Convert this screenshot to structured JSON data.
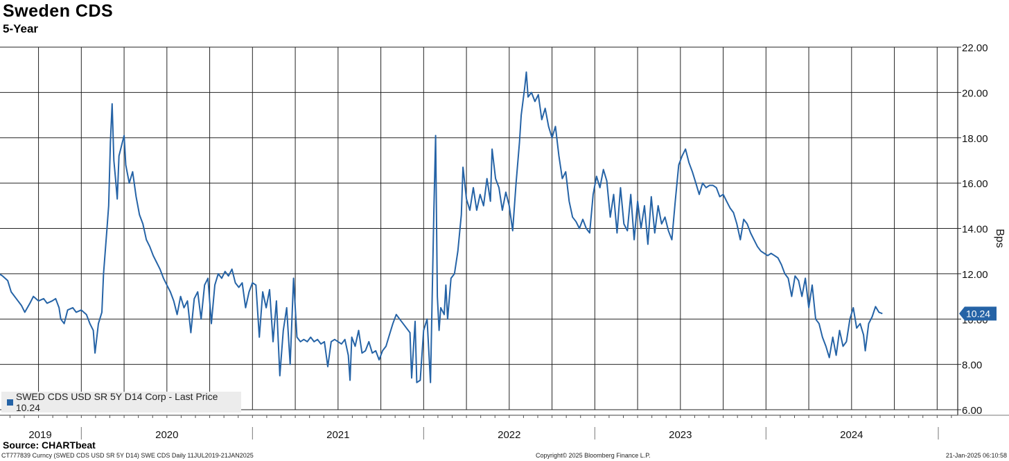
{
  "header": {
    "title": "Sweden CDS",
    "subtitle": "5-Year"
  },
  "legend": {
    "label": "SWED CDS USD SR 5Y D14 Corp - Last Price 10.24",
    "color": "#2563a6"
  },
  "last_price_label": "10.24",
  "source": "Source: CHARTbeat",
  "footer": {
    "left": "CT777839 Curncy (SWED CDS USD SR 5Y D14) SWE CDS  Daily 11JUL2019-21JAN2025",
    "middle": "Copyright© 2025 Bloomberg Finance L.P.",
    "right": "21-Jan-2025 06:10:58"
  },
  "chart_data": {
    "type": "line",
    "title": "Sweden CDS",
    "subtitle": "5-Year",
    "ylabel": "Bps",
    "ylim": [
      6,
      22
    ],
    "y_ticks": [
      "22.00",
      "20.00",
      "18.00",
      "16.00",
      "14.00",
      "12.00",
      "10.00",
      "8.00",
      "6.00"
    ],
    "x_ticks": [
      "2019",
      "2020",
      "2021",
      "2022",
      "2023",
      "2024"
    ],
    "grid": true,
    "legend_position": "bottom-left",
    "series": [
      {
        "name": "SWED CDS USD SR 5Y D14 Corp - Last Price",
        "color": "#2563a6",
        "last_value": 10.24,
        "points": [
          [
            2019.52,
            12.0
          ],
          [
            2019.54,
            11.9
          ],
          [
            2019.57,
            11.7
          ],
          [
            2019.59,
            11.2
          ],
          [
            2019.62,
            10.9
          ],
          [
            2019.65,
            10.6
          ],
          [
            2019.67,
            10.3
          ],
          [
            2019.7,
            10.7
          ],
          [
            2019.72,
            11.0
          ],
          [
            2019.75,
            10.8
          ],
          [
            2019.78,
            10.9
          ],
          [
            2019.8,
            10.7
          ],
          [
            2019.83,
            10.8
          ],
          [
            2019.85,
            10.9
          ],
          [
            2019.87,
            10.5
          ],
          [
            2019.88,
            10.0
          ],
          [
            2019.9,
            9.8
          ],
          [
            2019.92,
            10.4
          ],
          [
            2019.95,
            10.5
          ],
          [
            2019.97,
            10.3
          ],
          [
            2020.0,
            10.4
          ],
          [
            2020.03,
            10.2
          ],
          [
            2020.05,
            9.8
          ],
          [
            2020.07,
            9.5
          ],
          [
            2020.08,
            8.5
          ],
          [
            2020.1,
            9.8
          ],
          [
            2020.12,
            10.3
          ],
          [
            2020.13,
            12.0
          ],
          [
            2020.15,
            14.0
          ],
          [
            2020.16,
            15.0
          ],
          [
            2020.17,
            17.8
          ],
          [
            2020.18,
            19.5
          ],
          [
            2020.19,
            17.0
          ],
          [
            2020.2,
            16.2
          ],
          [
            2020.21,
            15.3
          ],
          [
            2020.22,
            17.2
          ],
          [
            2020.24,
            17.8
          ],
          [
            2020.25,
            18.1
          ],
          [
            2020.26,
            16.8
          ],
          [
            2020.28,
            16.0
          ],
          [
            2020.3,
            16.5
          ],
          [
            2020.32,
            15.4
          ],
          [
            2020.34,
            14.6
          ],
          [
            2020.36,
            14.2
          ],
          [
            2020.38,
            13.5
          ],
          [
            2020.4,
            13.2
          ],
          [
            2020.42,
            12.8
          ],
          [
            2020.44,
            12.5
          ],
          [
            2020.46,
            12.2
          ],
          [
            2020.48,
            11.8
          ],
          [
            2020.5,
            11.5
          ],
          [
            2020.52,
            11.2
          ],
          [
            2020.54,
            10.8
          ],
          [
            2020.56,
            10.2
          ],
          [
            2020.58,
            11.0
          ],
          [
            2020.6,
            10.5
          ],
          [
            2020.62,
            10.8
          ],
          [
            2020.64,
            9.4
          ],
          [
            2020.66,
            10.9
          ],
          [
            2020.68,
            11.2
          ],
          [
            2020.7,
            10.0
          ],
          [
            2020.72,
            11.5
          ],
          [
            2020.74,
            11.8
          ],
          [
            2020.76,
            9.8
          ],
          [
            2020.78,
            11.5
          ],
          [
            2020.8,
            12.0
          ],
          [
            2020.82,
            11.8
          ],
          [
            2020.84,
            12.1
          ],
          [
            2020.86,
            11.9
          ],
          [
            2020.88,
            12.2
          ],
          [
            2020.9,
            11.6
          ],
          [
            2020.92,
            11.4
          ],
          [
            2020.94,
            11.6
          ],
          [
            2020.96,
            10.5
          ],
          [
            2020.98,
            11.2
          ],
          [
            2021.0,
            11.6
          ],
          [
            2021.02,
            11.5
          ],
          [
            2021.04,
            9.2
          ],
          [
            2021.06,
            11.2
          ],
          [
            2021.08,
            10.5
          ],
          [
            2021.1,
            11.3
          ],
          [
            2021.12,
            9.0
          ],
          [
            2021.14,
            10.8
          ],
          [
            2021.16,
            7.5
          ],
          [
            2021.18,
            9.5
          ],
          [
            2021.2,
            10.5
          ],
          [
            2021.22,
            8.0
          ],
          [
            2021.24,
            11.8
          ],
          [
            2021.26,
            9.2
          ],
          [
            2021.28,
            9.0
          ],
          [
            2021.3,
            9.1
          ],
          [
            2021.32,
            9.0
          ],
          [
            2021.34,
            9.2
          ],
          [
            2021.36,
            9.0
          ],
          [
            2021.38,
            9.1
          ],
          [
            2021.4,
            8.9
          ],
          [
            2021.42,
            9.0
          ],
          [
            2021.44,
            7.9
          ],
          [
            2021.46,
            9.0
          ],
          [
            2021.48,
            9.1
          ],
          [
            2021.5,
            9.0
          ],
          [
            2021.52,
            8.9
          ],
          [
            2021.54,
            9.1
          ],
          [
            2021.56,
            8.4
          ],
          [
            2021.57,
            7.3
          ],
          [
            2021.58,
            9.2
          ],
          [
            2021.6,
            8.8
          ],
          [
            2021.62,
            9.5
          ],
          [
            2021.64,
            8.5
          ],
          [
            2021.66,
            8.6
          ],
          [
            2021.68,
            9.0
          ],
          [
            2021.7,
            8.5
          ],
          [
            2021.72,
            8.6
          ],
          [
            2021.74,
            8.2
          ],
          [
            2021.76,
            8.6
          ],
          [
            2021.78,
            8.8
          ],
          [
            2021.8,
            9.3
          ],
          [
            2021.82,
            9.8
          ],
          [
            2021.84,
            10.2
          ],
          [
            2021.86,
            10.0
          ],
          [
            2021.88,
            9.8
          ],
          [
            2021.9,
            9.6
          ],
          [
            2021.92,
            9.4
          ],
          [
            2021.93,
            7.4
          ],
          [
            2021.95,
            9.9
          ],
          [
            2021.96,
            7.2
          ],
          [
            2021.98,
            7.3
          ],
          [
            2022.0,
            9.5
          ],
          [
            2022.02,
            10.0
          ],
          [
            2022.04,
            7.2
          ],
          [
            2022.06,
            14.8
          ],
          [
            2022.07,
            18.1
          ],
          [
            2022.08,
            11.0
          ],
          [
            2022.09,
            9.5
          ],
          [
            2022.1,
            10.5
          ],
          [
            2022.12,
            10.2
          ],
          [
            2022.13,
            11.5
          ],
          [
            2022.14,
            10.0
          ],
          [
            2022.16,
            11.8
          ],
          [
            2022.18,
            12.0
          ],
          [
            2022.2,
            13.0
          ],
          [
            2022.22,
            14.6
          ],
          [
            2022.23,
            16.7
          ],
          [
            2022.25,
            15.3
          ],
          [
            2022.27,
            14.8
          ],
          [
            2022.29,
            15.8
          ],
          [
            2022.31,
            14.8
          ],
          [
            2022.33,
            15.5
          ],
          [
            2022.35,
            15.0
          ],
          [
            2022.37,
            16.2
          ],
          [
            2022.39,
            15.2
          ],
          [
            2022.4,
            17.5
          ],
          [
            2022.42,
            16.2
          ],
          [
            2022.44,
            15.8
          ],
          [
            2022.46,
            14.8
          ],
          [
            2022.48,
            15.6
          ],
          [
            2022.5,
            15.0
          ],
          [
            2022.52,
            13.9
          ],
          [
            2022.54,
            16.0
          ],
          [
            2022.56,
            17.8
          ],
          [
            2022.57,
            19.0
          ],
          [
            2022.59,
            20.2
          ],
          [
            2022.6,
            20.9
          ],
          [
            2022.61,
            19.8
          ],
          [
            2022.63,
            20.0
          ],
          [
            2022.65,
            19.6
          ],
          [
            2022.67,
            19.9
          ],
          [
            2022.69,
            18.8
          ],
          [
            2022.71,
            19.3
          ],
          [
            2022.73,
            18.5
          ],
          [
            2022.75,
            18.0
          ],
          [
            2022.77,
            18.5
          ],
          [
            2022.79,
            17.2
          ],
          [
            2022.81,
            16.2
          ],
          [
            2022.83,
            16.5
          ],
          [
            2022.85,
            15.2
          ],
          [
            2022.87,
            14.5
          ],
          [
            2022.89,
            14.3
          ],
          [
            2022.91,
            14.0
          ],
          [
            2022.93,
            14.4
          ],
          [
            2022.95,
            14.0
          ],
          [
            2022.97,
            13.8
          ],
          [
            2022.99,
            15.5
          ],
          [
            2023.01,
            16.3
          ],
          [
            2023.03,
            15.8
          ],
          [
            2023.05,
            16.6
          ],
          [
            2023.07,
            16.1
          ],
          [
            2023.09,
            14.5
          ],
          [
            2023.11,
            15.5
          ],
          [
            2023.13,
            13.8
          ],
          [
            2023.15,
            15.8
          ],
          [
            2023.17,
            14.2
          ],
          [
            2023.19,
            13.9
          ],
          [
            2023.21,
            15.5
          ],
          [
            2023.23,
            13.5
          ],
          [
            2023.25,
            15.2
          ],
          [
            2023.27,
            14.0
          ],
          [
            2023.29,
            15.0
          ],
          [
            2023.31,
            13.3
          ],
          [
            2023.33,
            15.4
          ],
          [
            2023.35,
            13.8
          ],
          [
            2023.37,
            15.0
          ],
          [
            2023.39,
            14.2
          ],
          [
            2023.41,
            14.5
          ],
          [
            2023.43,
            13.9
          ],
          [
            2023.45,
            13.5
          ],
          [
            2023.47,
            15.2
          ],
          [
            2023.49,
            16.8
          ],
          [
            2023.51,
            17.2
          ],
          [
            2023.53,
            17.5
          ],
          [
            2023.55,
            16.9
          ],
          [
            2023.57,
            16.5
          ],
          [
            2023.59,
            16.0
          ],
          [
            2023.61,
            15.5
          ],
          [
            2023.63,
            16.0
          ],
          [
            2023.65,
            15.8
          ],
          [
            2023.67,
            15.9
          ],
          [
            2023.69,
            15.9
          ],
          [
            2023.71,
            15.8
          ],
          [
            2023.73,
            15.4
          ],
          [
            2023.75,
            15.5
          ],
          [
            2023.77,
            15.2
          ],
          [
            2023.79,
            14.9
          ],
          [
            2023.81,
            14.7
          ],
          [
            2023.83,
            14.2
          ],
          [
            2023.85,
            13.5
          ],
          [
            2023.87,
            14.4
          ],
          [
            2023.89,
            14.2
          ],
          [
            2023.91,
            13.8
          ],
          [
            2023.93,
            13.5
          ],
          [
            2023.95,
            13.2
          ],
          [
            2023.97,
            13.0
          ],
          [
            2023.99,
            12.9
          ],
          [
            2024.01,
            12.8
          ],
          [
            2024.03,
            12.9
          ],
          [
            2024.05,
            12.8
          ],
          [
            2024.07,
            12.7
          ],
          [
            2024.09,
            12.4
          ],
          [
            2024.11,
            12.0
          ],
          [
            2024.13,
            11.8
          ],
          [
            2024.15,
            11.0
          ],
          [
            2024.17,
            11.9
          ],
          [
            2024.19,
            11.7
          ],
          [
            2024.21,
            11.0
          ],
          [
            2024.23,
            11.8
          ],
          [
            2024.25,
            10.5
          ],
          [
            2024.27,
            11.5
          ],
          [
            2024.29,
            10.0
          ],
          [
            2024.31,
            9.8
          ],
          [
            2024.33,
            9.2
          ],
          [
            2024.35,
            8.8
          ],
          [
            2024.37,
            8.3
          ],
          [
            2024.39,
            9.2
          ],
          [
            2024.41,
            8.4
          ],
          [
            2024.43,
            9.5
          ],
          [
            2024.45,
            8.8
          ],
          [
            2024.47,
            9.0
          ],
          [
            2024.49,
            10.0
          ],
          [
            2024.51,
            10.5
          ],
          [
            2024.53,
            9.6
          ],
          [
            2024.55,
            9.8
          ],
          [
            2024.57,
            9.3
          ],
          [
            2024.58,
            8.6
          ],
          [
            2024.6,
            9.8
          ],
          [
            2024.62,
            10.1
          ],
          [
            2024.64,
            10.55
          ],
          [
            2024.66,
            10.3
          ],
          [
            2024.68,
            10.24
          ]
        ]
      }
    ]
  }
}
